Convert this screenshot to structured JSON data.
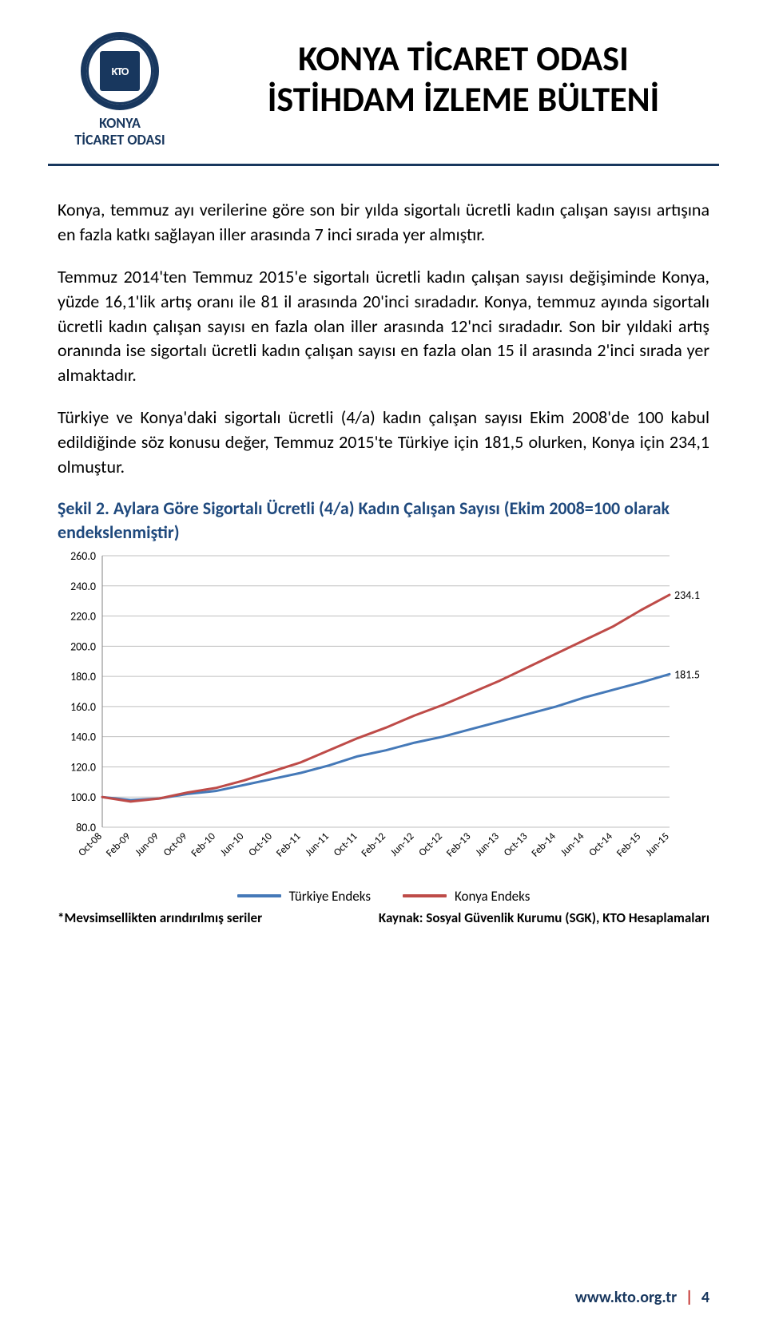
{
  "org": {
    "name_line1": "KONYA",
    "name_line2": "TİCARET ODASI",
    "monogram": "KTO"
  },
  "header": {
    "title_line1": "KONYA TİCARET ODASI",
    "title_line2": "İSTİHDAM İZLEME BÜLTENİ"
  },
  "paragraphs": {
    "p1": "Konya, temmuz ayı verilerine göre son bir yılda sigortalı ücretli kadın çalışan sayısı artışına en fazla katkı sağlayan iller arasında 7 inci sırada yer almıştır.",
    "p2": "Temmuz 2014'ten Temmuz 2015'e sigortalı ücretli kadın çalışan sayısı değişiminde Konya, yüzde 16,1'lik artış oranı ile 81 il arasında 20'inci sıradadır. Konya, temmuz ayında sigortalı ücretli kadın çalışan sayısı en fazla olan iller arasında 12'nci sıradadır. Son bir yıldaki artış oranında ise sigortalı ücretli kadın çalışan sayısı en fazla olan 15 il arasında 2'inci sırada yer almaktadır.",
    "p3": "Türkiye ve Konya'daki sigortalı ücretli (4/a) kadın çalışan sayısı Ekim 2008'de 100 kabul edildiğinde söz konusu değer, Temmuz 2015'te Türkiye için 181,5 olurken, Konya için 234,1 olmuştur."
  },
  "chart": {
    "title": "Şekil 2. Aylara Göre Sigortalı Ücretli (4/a) Kadın Çalışan Sayısı (Ekim 2008=100 olarak endekslenmiştir)",
    "ylim": [
      80,
      260
    ],
    "ytick_step": 20,
    "yticks": [
      "260.0",
      "240.0",
      "220.0",
      "200.0",
      "180.0",
      "160.0",
      "140.0",
      "120.0",
      "100.0",
      "80.0"
    ],
    "xlabels": [
      "Oct-08",
      "Feb-09",
      "Jun-09",
      "Oct-09",
      "Feb-10",
      "Jun-10",
      "Oct-10",
      "Feb-11",
      "Jun-11",
      "Oct-11",
      "Feb-12",
      "Jun-12",
      "Oct-12",
      "Feb-13",
      "Jun-13",
      "Oct-13",
      "Feb-14",
      "Jun-14",
      "Oct-14",
      "Feb-15",
      "Jun-15"
    ],
    "n_points": 21,
    "series": [
      {
        "name": "Türkiye Endeks",
        "color": "#4579b8",
        "end_label": "181.5",
        "values": [
          100,
          98,
          99,
          102,
          104,
          108,
          112,
          116,
          121,
          127,
          131,
          136,
          140,
          145,
          150,
          155,
          160,
          166,
          171,
          176,
          181.5
        ]
      },
      {
        "name": "Konya Endeks",
        "color": "#be4b48",
        "end_label": "234.1",
        "values": [
          100,
          97,
          99,
          103,
          106,
          111,
          117,
          123,
          131,
          139,
          146,
          154,
          161,
          169,
          177,
          186,
          195,
          204,
          213,
          224,
          234.1
        ]
      }
    ],
    "line_width": 3,
    "grid_color": "#bfbfbf",
    "axis_color": "#808080",
    "background": "#ffffff",
    "axis_fontsize": 14,
    "tick_fontsize": 13,
    "legend_swatch_width": 55
  },
  "chart_footer": {
    "left": "*Mevsimsellikten arındırılmış seriler",
    "right": "Kaynak: Sosyal Güvenlik Kurumu (SGK), KTO Hesaplamaları"
  },
  "footer": {
    "url": "www.kto.org.tr",
    "sep": "|",
    "page": "4"
  }
}
